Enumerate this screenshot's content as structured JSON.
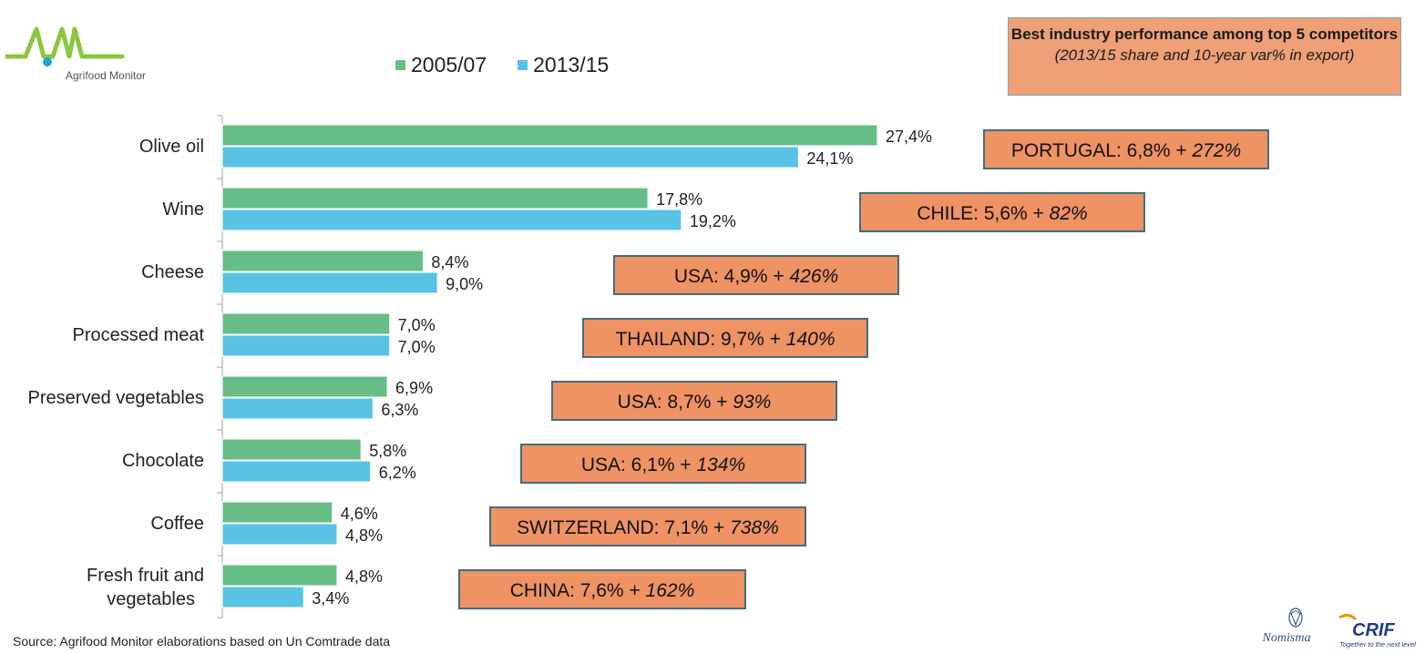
{
  "logo": {
    "name": "Agrifood Monitor"
  },
  "legend": [
    {
      "label": "2005/07",
      "color": "#66BE86"
    },
    {
      "label": "2013/15",
      "color": "#58C3E5"
    }
  ],
  "info_box": {
    "title": "Best industry performance among  top 5 competitors",
    "subtitle": "(2013/15 share and 10-year var% in export)"
  },
  "chart_data": {
    "type": "bar",
    "orientation": "horizontal",
    "categories": [
      "Olive oil",
      "Wine",
      "Cheese",
      "Processed meat",
      "Preserved vegetables",
      "Chocolate",
      "Coffee",
      "Fresh fruit and vegetables"
    ],
    "series": [
      {
        "name": "2005/07",
        "values": [
          27.4,
          17.8,
          8.4,
          7.0,
          6.9,
          5.8,
          4.6,
          4.8
        ],
        "labels": [
          "27,4%",
          "17,8%",
          "8,4%",
          "7,0%",
          "6,9%",
          "5,8%",
          "4,6%",
          "4,8%"
        ]
      },
      {
        "name": "2013/15",
        "values": [
          24.1,
          19.2,
          9.0,
          7.0,
          6.3,
          6.2,
          4.8,
          3.4
        ],
        "labels": [
          "24,1%",
          "19,2%",
          "9,0%",
          "7,0%",
          "6,3%",
          "6,2%",
          "4,8%",
          "3,4%"
        ]
      }
    ],
    "xlim": [
      0,
      27.4
    ],
    "grid": false,
    "legend_position": "top",
    "callouts": [
      {
        "country": "PORTUGAL:",
        "share": "6,8%",
        "plus": "+",
        "var": "272%"
      },
      {
        "country": "CHILE:",
        "share": "5,6%",
        "plus": "+",
        "var": "82%"
      },
      {
        "country": "USA:",
        "share": "4,9%",
        "plus": "+",
        "var": "426%"
      },
      {
        "country": "THAILAND:",
        "share": "9,7%",
        "plus": "+",
        "var": "140%"
      },
      {
        "country": "USA:",
        "share": "8,7%",
        "plus": "+",
        "var": "93%"
      },
      {
        "country": "USA:",
        "share": "6,1%",
        "plus": "+",
        "var": "134%"
      },
      {
        "country": "SWITZERLAND:",
        "share": "7,1%",
        "plus": "+",
        "var": "738%"
      },
      {
        "country": "CHINA:",
        "share": "7,6%",
        "plus": "+",
        "var": "162%"
      }
    ],
    "callout_colors": {
      "fill": "#EF9264",
      "border": "#3F6F7A"
    }
  },
  "source": "Source:  Agrifood Monitor elaborations based on Un Comtrade data",
  "footer_logos": {
    "nomisma": "Nomisma",
    "crif": "CRIF",
    "crif_tagline": "Together to the next level"
  }
}
